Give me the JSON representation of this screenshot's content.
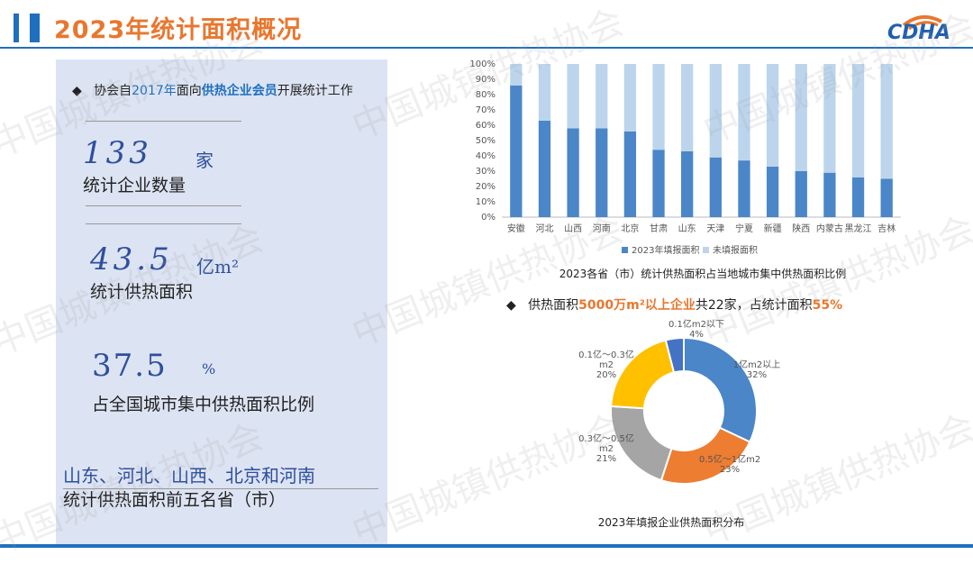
{
  "header": {
    "title": "2023年统计面积概况",
    "logo_text": "CDHA"
  },
  "watermark": "中国城镇供热协会",
  "left_panel": {
    "intro_prefix": "协会自",
    "intro_year": "2017年",
    "intro_mid": "面向",
    "intro_hl": "供热企业会员",
    "intro_suffix": "开展统计工作",
    "stats": [
      {
        "value": "133",
        "unit": "家",
        "label": "统计企业数量"
      },
      {
        "value": "43.5",
        "unit": "亿m²",
        "label": "统计供热面积"
      },
      {
        "value": "37.5",
        "unit": "%",
        "label": "占全国城市集中供热面积比例"
      }
    ],
    "provinces": "山东、河北、山西、北京和河南",
    "provinces_label": "统计供热面积前五名省（市）"
  },
  "bar_chart": {
    "caption": "2023各省（市）统计供热面积占当地城市集中供热面积比例",
    "legend": [
      "2023年填报面积",
      "未填报面积"
    ],
    "colors": [
      "#4a86c8",
      "#bcd5ec"
    ],
    "y_ticks": [
      "100%",
      "90%",
      "80%",
      "70%",
      "60%",
      "50%",
      "40%",
      "30%",
      "20%",
      "10%",
      "0%"
    ]
  },
  "pie_header": {
    "prefix": "供热面积",
    "hl1": "5000万m²以上企业",
    "mid": "共22家，占统计面积",
    "hl2": "55%"
  },
  "pie_chart": {
    "caption": "2023年填报企业供热面积分布"
  },
  "chart_data": [
    {
      "type": "bar",
      "stacked": true,
      "title": "2023各省（市）统计供热面积占当地城市集中供热面积比例",
      "categories": [
        "安徽",
        "河北",
        "山西",
        "河南",
        "北京",
        "甘肃",
        "山东",
        "天津",
        "宁夏",
        "新疆",
        "陕西",
        "内蒙古",
        "黑龙江",
        "吉林"
      ],
      "series": [
        {
          "name": "2023年填报面积",
          "values": [
            86,
            63,
            58,
            58,
            56,
            44,
            43,
            39,
            37,
            33,
            30,
            29,
            26,
            25
          ]
        },
        {
          "name": "未填报面积",
          "values": [
            14,
            37,
            42,
            42,
            44,
            56,
            57,
            61,
            63,
            67,
            70,
            71,
            74,
            75
          ]
        }
      ],
      "ylim": [
        0,
        100
      ],
      "legend_position": "bottom"
    },
    {
      "type": "pie",
      "title": "2023年填报企业供热面积分布",
      "donut": true,
      "slices": [
        {
          "label": "1亿m2以上",
          "value": 32,
          "pct": "32%",
          "color": "#4a86c8"
        },
        {
          "label": "0.5亿～1亿m2",
          "value": 23,
          "pct": "23%",
          "color": "#ed7d31"
        },
        {
          "label": "0.3亿～0.5亿m2",
          "value": 21,
          "pct": "21%",
          "color": "#a5a5a5"
        },
        {
          "label": "0.1亿～0.3亿m2",
          "value": 20,
          "pct": "20%",
          "color": "#ffc000"
        },
        {
          "label": "0.1亿m2以下",
          "value": 4,
          "pct": "4%",
          "color": "#4472c4"
        }
      ]
    }
  ]
}
